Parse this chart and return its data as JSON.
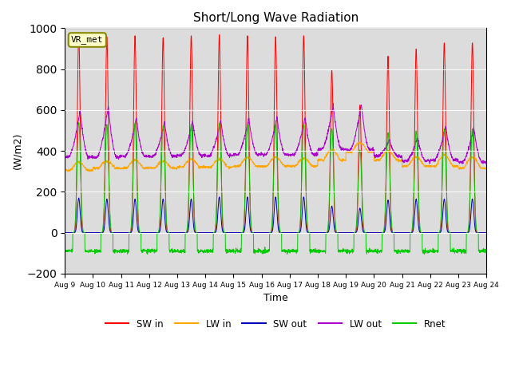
{
  "title": "Short/Long Wave Radiation",
  "ylabel": "(W/m2)",
  "xlabel": "Time",
  "ylim": [
    -200,
    1000
  ],
  "yticks": [
    -200,
    0,
    200,
    400,
    600,
    800,
    1000
  ],
  "xtick_labels": [
    "Aug 9",
    "Aug 10",
    "Aug 11",
    "Aug 12",
    "Aug 13",
    "Aug 14",
    "Aug 15",
    "Aug 16",
    "Aug 17",
    "Aug 18",
    "Aug 19",
    "Aug 20",
    "Aug 21",
    "Aug 22",
    "Aug 23",
    "Aug 24"
  ],
  "station_label": "VR_met",
  "colors": {
    "SW_in": "#ff0000",
    "LW_in": "#ffa500",
    "SW_out": "#0000bb",
    "LW_out": "#aa00cc",
    "Rnet": "#00cc00"
  },
  "legend_labels": [
    "SW in",
    "LW in",
    "SW out",
    "LW out",
    "Rnet"
  ],
  "bg_color": "#dcdcdc",
  "fig_bg": "#ffffff",
  "n_days": 15,
  "pts_per_day": 144,
  "SW_in_peaks": [
    975,
    960,
    965,
    955,
    965,
    970,
    965,
    960,
    965,
    795,
    625,
    865,
    900,
    930,
    930
  ],
  "LW_in_base": [
    305,
    315,
    315,
    315,
    320,
    320,
    325,
    325,
    325,
    355,
    395,
    355,
    325,
    325,
    315
  ],
  "LW_in_daytime_add": [
    40,
    35,
    40,
    35,
    40,
    40,
    42,
    45,
    40,
    50,
    45,
    45,
    45,
    55,
    55
  ],
  "SW_out_peaks": [
    170,
    165,
    165,
    165,
    165,
    175,
    175,
    175,
    175,
    130,
    120,
    160,
    165,
    165,
    165
  ],
  "LW_out_base": [
    370,
    370,
    372,
    372,
    377,
    377,
    382,
    382,
    382,
    408,
    405,
    375,
    350,
    355,
    345
  ],
  "LW_out_peaks": [
    600,
    620,
    560,
    540,
    545,
    550,
    560,
    565,
    565,
    625,
    630,
    455,
    465,
    520,
    515
  ],
  "Rnet_peaks": [
    540,
    530,
    535,
    525,
    530,
    535,
    530,
    530,
    530,
    510,
    405,
    490,
    498,
    508,
    508
  ],
  "Rnet_night": [
    -90,
    -90,
    -90,
    -90,
    -90,
    -90,
    -90,
    -90,
    -90,
    -90,
    -90,
    -90,
    -90,
    -90,
    -90
  ]
}
